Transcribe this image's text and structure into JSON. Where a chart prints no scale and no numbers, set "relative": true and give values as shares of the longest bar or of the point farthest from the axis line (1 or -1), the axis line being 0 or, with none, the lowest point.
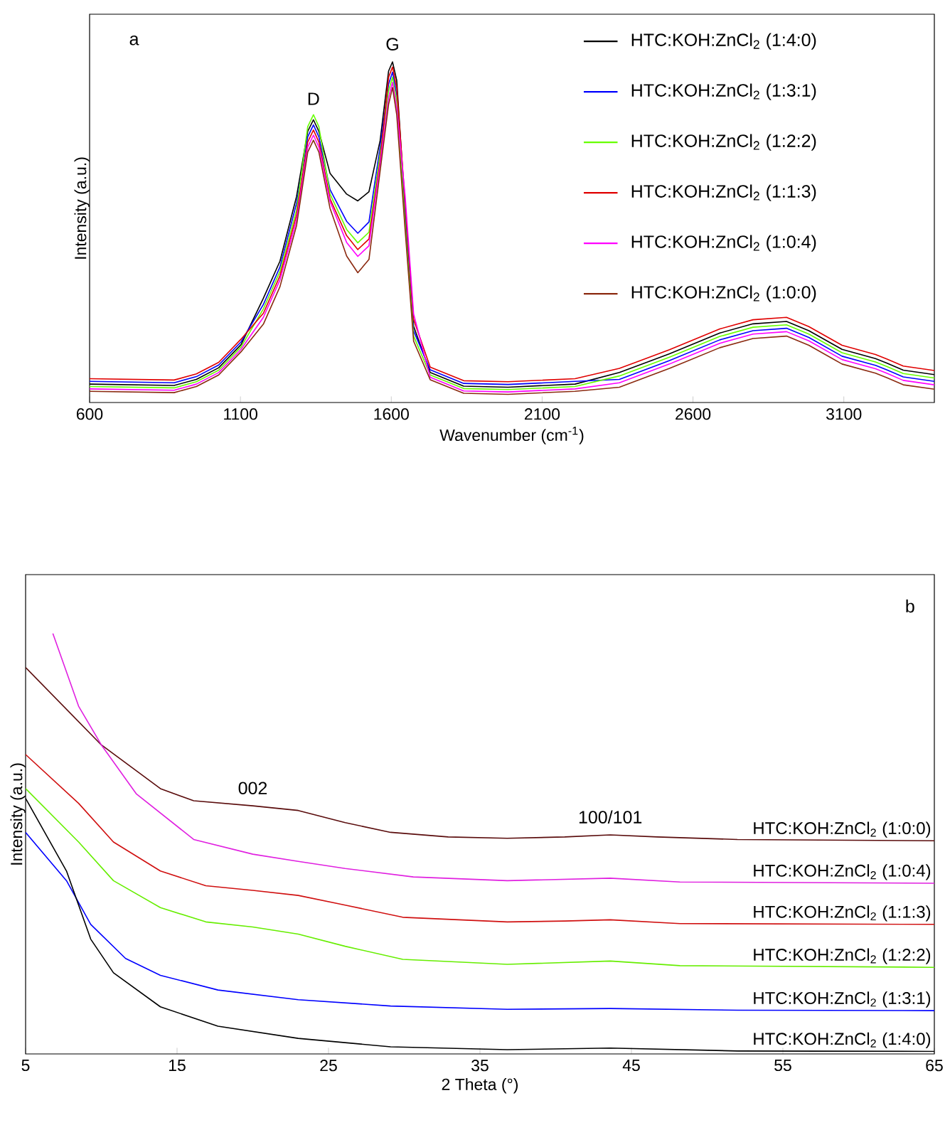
{
  "chart_data": [
    {
      "type": "line",
      "relative": true,
      "xlabel": "Wavenumber (cm$^{-1}$)",
      "ylabel": "Intensity (a.u.)",
      "xlim": [
        600,
        3400
      ],
      "xticks": [
        600,
        1100,
        1600,
        2100,
        2600,
        3100
      ],
      "legend": "top right",
      "x": [
        600,
        880,
        954,
        1028,
        1102,
        1176,
        1231,
        1286,
        1323,
        1342,
        1360,
        1397,
        1452,
        1489,
        1526,
        1563,
        1591,
        1604,
        1618,
        1646,
        1674,
        1729,
        1840,
        1987,
        2209,
        2356,
        2522,
        2689,
        2799,
        2910,
        2984,
        3094,
        3205,
        3242,
        3297,
        3400
      ],
      "annotations": [
        "a",
        {
          "text": "D",
          "x": 1342,
          "y": 0.84
        },
        {
          "text": "G",
          "x": 1604,
          "y": 1
        }
      ],
      "series": [
        {
          "name": "HTC:KOH:ZnCl$_{2}$ (1:4:0)",
          "color": "#000000",
          "values": [
            0.054,
            0.05,
            0.068,
            0.102,
            0.17,
            0.306,
            0.415,
            0.605,
            0.796,
            0.83,
            0.796,
            0.673,
            0.612,
            0.592,
            0.619,
            0.769,
            0.973,
            1,
            0.946,
            0.565,
            0.224,
            0.088,
            0.048,
            0.045,
            0.054,
            0.088,
            0.143,
            0.204,
            0.231,
            0.238,
            0.211,
            0.156,
            0.129,
            0.116,
            0.095,
            0.082
          ]
        },
        {
          "name": "HTC:KOH:ZnCl$_{2}$ (1:3:1)",
          "color": "#0000ff",
          "values": [
            0.062,
            0.058,
            0.076,
            0.11,
            0.178,
            0.288,
            0.398,
            0.585,
            0.78,
            0.815,
            0.78,
            0.625,
            0.532,
            0.497,
            0.53,
            0.75,
            0.935,
            0.97,
            0.905,
            0.545,
            0.21,
            0.096,
            0.056,
            0.053,
            0.062,
            0.068,
            0.123,
            0.184,
            0.211,
            0.218,
            0.191,
            0.136,
            0.109,
            0.096,
            0.075,
            0.062
          ]
        },
        {
          "name": "HTC:KOH:ZnCl$_{2}$ (1:2:2)",
          "color": "#66ff00",
          "values": [
            0.047,
            0.043,
            0.061,
            0.095,
            0.163,
            0.275,
            0.385,
            0.565,
            0.81,
            0.845,
            0.81,
            0.612,
            0.508,
            0.469,
            0.5,
            0.73,
            0.915,
            0.955,
            0.885,
            0.525,
            0.195,
            0.081,
            0.041,
            0.038,
            0.047,
            0.078,
            0.133,
            0.194,
            0.221,
            0.228,
            0.201,
            0.146,
            0.119,
            0.106,
            0.085,
            0.072
          ]
        },
        {
          "name": "HTC:KOH:ZnCl$_{2}$ (1:1:3)",
          "color": "#e00000",
          "values": [
            0.07,
            0.066,
            0.084,
            0.118,
            0.186,
            0.262,
            0.372,
            0.55,
            0.765,
            0.8,
            0.765,
            0.598,
            0.49,
            0.449,
            0.48,
            0.71,
            0.955,
            0.985,
            0.925,
            0.585,
            0.244,
            0.104,
            0.064,
            0.061,
            0.07,
            0.1,
            0.155,
            0.216,
            0.243,
            0.25,
            0.223,
            0.168,
            0.141,
            0.128,
            0.107,
            0.094
          ]
        },
        {
          "name": "HTC:KOH:ZnCl$_{2}$ (1:0:4)",
          "color": "#ff00ff",
          "values": [
            0.04,
            0.036,
            0.054,
            0.088,
            0.156,
            0.25,
            0.36,
            0.535,
            0.75,
            0.785,
            0.75,
            0.59,
            0.47,
            0.429,
            0.46,
            0.7,
            0.895,
            0.94,
            0.865,
            0.605,
            0.26,
            0.074,
            0.034,
            0.031,
            0.04,
            0.058,
            0.113,
            0.174,
            0.201,
            0.208,
            0.181,
            0.126,
            0.099,
            0.086,
            0.065,
            0.052
          ]
        },
        {
          "name": "HTC:KOH:ZnCl$_{2}$ (1:0:0)",
          "color": "#8b2a10",
          "values": [
            0.033,
            0.029,
            0.047,
            0.081,
            0.149,
            0.23,
            0.34,
            0.52,
            0.735,
            0.77,
            0.735,
            0.57,
            0.43,
            0.381,
            0.42,
            0.68,
            0.875,
            0.925,
            0.845,
            0.505,
            0.18,
            0.067,
            0.027,
            0.024,
            0.033,
            0.045,
            0.1,
            0.161,
            0.188,
            0.195,
            0.168,
            0.113,
            0.086,
            0.073,
            0.052,
            0.039
          ]
        }
      ]
    },
    {
      "type": "line",
      "relative": true,
      "xlabel": "2 Theta (°)",
      "ylabel": "Intensity (a.u.)",
      "xlim": [
        5,
        65
      ],
      "xticks": [
        5,
        15,
        25,
        35,
        45,
        55,
        65
      ],
      "annotations": [
        "b",
        {
          "text": "002",
          "x": 20,
          "y": 0.59
        },
        {
          "text": "100/101",
          "x": 43.6,
          "y": 0.521
        }
      ],
      "series": [
        {
          "name": "HTC:KOH:ZnCl$_{2}$ (1:0:0)",
          "color": "#5a0c0c",
          "x": [
            5,
            10,
            13.9,
            16.1,
            20,
            23,
            26.1,
            29.1,
            32.9,
            36.8,
            40.6,
            43.6,
            46.7,
            52,
            65
          ],
          "values": [
            0.919,
            0.735,
            0.631,
            0.602,
            0.59,
            0.579,
            0.55,
            0.527,
            0.516,
            0.513,
            0.516,
            0.521,
            0.516,
            0.51,
            0.507
          ]
        },
        {
          "name": "HTC:KOH:ZnCl$_{2}$ (1:0:4)",
          "color": "#e020e0",
          "x": [
            6.8,
            8.5,
            10,
            12.3,
            16.1,
            20,
            23,
            26.1,
            30.6,
            36.8,
            43.6,
            48.2,
            65
          ],
          "values": [
            1,
            0.827,
            0.735,
            0.619,
            0.51,
            0.475,
            0.458,
            0.441,
            0.421,
            0.412,
            0.418,
            0.409,
            0.406
          ]
        },
        {
          "name": "HTC:KOH:ZnCl$_{2}$ (1:1:3)",
          "color": "#d01010",
          "x": [
            5,
            8.5,
            10.8,
            13.9,
            16.9,
            20,
            23,
            26.1,
            29.9,
            36.8,
            40.6,
            43.6,
            48.2,
            65
          ],
          "values": [
            0.712,
            0.596,
            0.504,
            0.435,
            0.4,
            0.389,
            0.377,
            0.354,
            0.325,
            0.314,
            0.316,
            0.319,
            0.31,
            0.308
          ]
        },
        {
          "name": "HTC:KOH:ZnCl$_{2}$ (1:2:2)",
          "color": "#66ee00",
          "x": [
            5,
            8.5,
            10.8,
            13.9,
            16.9,
            20,
            23,
            26.1,
            29.9,
            36.8,
            43.6,
            48.2,
            65
          ],
          "values": [
            0.631,
            0.504,
            0.412,
            0.348,
            0.314,
            0.302,
            0.285,
            0.256,
            0.225,
            0.213,
            0.221,
            0.21,
            0.206
          ]
        },
        {
          "name": "HTC:KOH:ZnCl$_{2}$ (1:3:1)",
          "color": "#0000ff",
          "x": [
            5,
            7.7,
            9.3,
            11.6,
            13.9,
            17.7,
            23,
            29.1,
            36.8,
            43.6,
            52,
            65
          ],
          "values": [
            0.527,
            0.412,
            0.308,
            0.227,
            0.187,
            0.152,
            0.129,
            0.114,
            0.106,
            0.108,
            0.104,
            0.103
          ]
        },
        {
          "name": "HTC:KOH:ZnCl$_{2}$ (1:4:0)",
          "color": "#000000",
          "x": [
            5,
            7.7,
            9.3,
            10.8,
            13.9,
            17.7,
            23,
            29.1,
            36.8,
            43.6,
            52,
            65
          ],
          "values": [
            0.608,
            0.435,
            0.273,
            0.193,
            0.112,
            0.066,
            0.037,
            0.017,
            0.01,
            0.014,
            0.007,
            0.006
          ]
        }
      ]
    }
  ]
}
